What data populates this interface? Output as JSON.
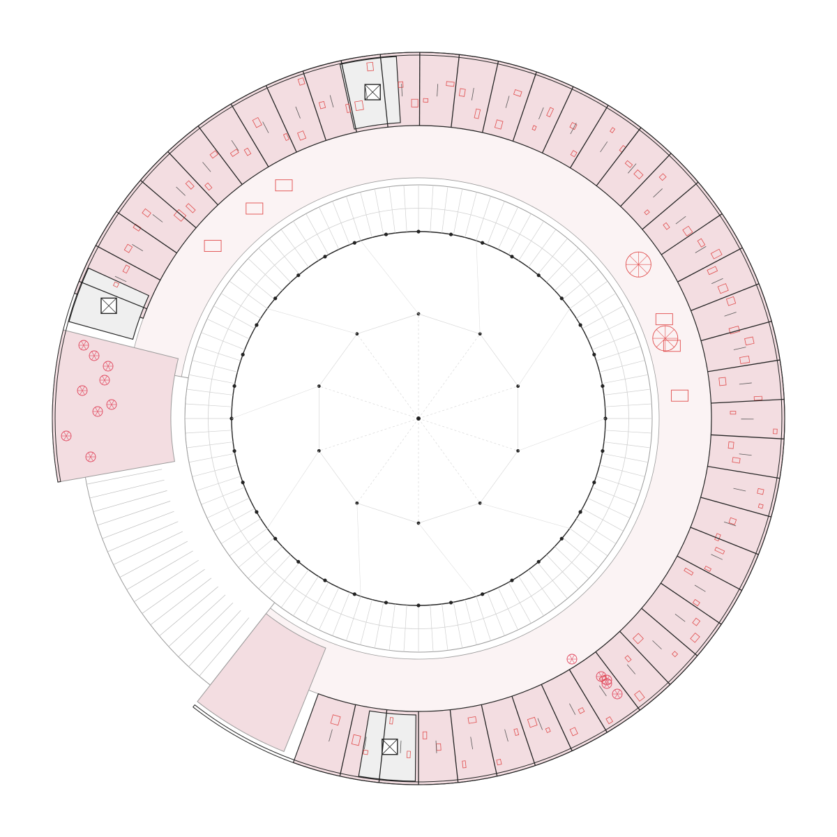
{
  "plan": {
    "ring_angles": {
      "start": 105,
      "end": -130
    },
    "colors": {
      "unit_fill": "#f3dde1",
      "corridor_fill": "#fbf3f4",
      "wall": "#222222",
      "thin_line": "#9a9a9a",
      "furniture": "#e04a4a",
      "core_fill": "#efefef",
      "tree": "#e0435a"
    },
    "labels": {
      "plan_name": "",
      "terrace_labels": []
    }
  }
}
